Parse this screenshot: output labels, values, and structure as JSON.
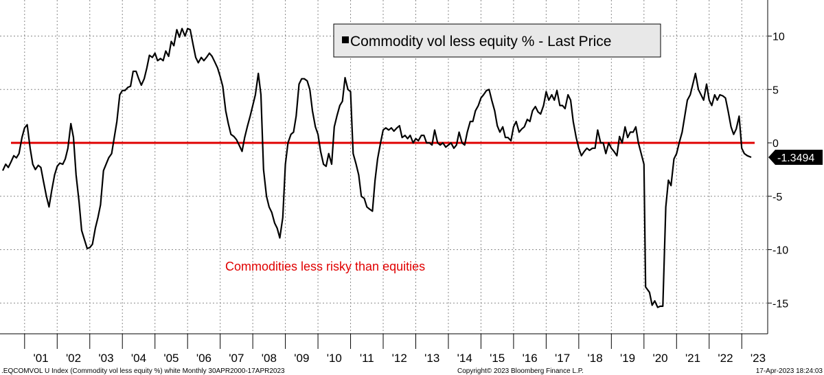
{
  "chart_data": {
    "type": "line",
    "title": "",
    "xlabel": "",
    "ylabel": "",
    "ylim": [
      -18.5,
      12.5
    ],
    "yticks": [
      10,
      5,
      0,
      -5,
      -10,
      -15
    ],
    "ytick_labels": [
      "10",
      "5",
      "0",
      "-5",
      "-10",
      "-15"
    ],
    "x_categories": [
      "'01",
      "'02",
      "'03",
      "'04",
      "'05",
      "'06",
      "'07",
      "'08",
      "'09",
      "'10",
      "'11",
      "'12",
      "'13",
      "'14",
      "'15",
      "'16",
      "'17",
      "'18",
      "'19",
      "'20",
      "'21",
      "'22",
      "'23"
    ],
    "x_start_year": 2000.33,
    "x_end_year": 2023.29,
    "grid": true,
    "legend": {
      "position": "top-center",
      "entries": [
        {
          "name": "Commodity vol less equity % - Last Price",
          "color": "#000000"
        }
      ]
    },
    "reference_line": {
      "y": 0,
      "color": "#e00000"
    },
    "last_value": {
      "value": -1.3494,
      "label": "-1.3494"
    },
    "annotation": {
      "text": "Commodities less risky than equities",
      "color": "#e00000"
    },
    "footer_left": ".EQCOMVOL U Index (Commodity vol less equity %) white  Monthly 30APR2000-17APR2023",
    "footer_center": "Copyright© 2023 Bloomberg Finance L.P.",
    "footer_right": "17-Apr-2023 18:24:03",
    "series": [
      {
        "name": "Commodity vol less equity % - Last Price",
        "color": "#000000",
        "points": [
          [
            2000.33,
            -2.6
          ],
          [
            2000.42,
            -2.0
          ],
          [
            2000.5,
            -2.3
          ],
          [
            2000.58,
            -1.8
          ],
          [
            2000.67,
            -1.2
          ],
          [
            2000.75,
            -1.4
          ],
          [
            2000.83,
            -1.0
          ],
          [
            2000.92,
            0.5
          ],
          [
            2001.0,
            1.4
          ],
          [
            2001.08,
            1.7
          ],
          [
            2001.17,
            -0.5
          ],
          [
            2001.25,
            -2.0
          ],
          [
            2001.33,
            -2.5
          ],
          [
            2001.42,
            -2.1
          ],
          [
            2001.5,
            -2.3
          ],
          [
            2001.58,
            -3.6
          ],
          [
            2001.67,
            -5.0
          ],
          [
            2001.75,
            -6.0
          ],
          [
            2001.83,
            -4.5
          ],
          [
            2001.92,
            -3.0
          ],
          [
            2002.0,
            -2.2
          ],
          [
            2002.08,
            -1.9
          ],
          [
            2002.17,
            -2.0
          ],
          [
            2002.25,
            -1.5
          ],
          [
            2002.33,
            -0.5
          ],
          [
            2002.42,
            1.8
          ],
          [
            2002.5,
            0.5
          ],
          [
            2002.58,
            -3.0
          ],
          [
            2002.67,
            -5.5
          ],
          [
            2002.75,
            -8.2
          ],
          [
            2002.83,
            -9.0
          ],
          [
            2002.92,
            -9.9
          ],
          [
            2003.0,
            -9.8
          ],
          [
            2003.08,
            -9.5
          ],
          [
            2003.17,
            -8.0
          ],
          [
            2003.25,
            -7.0
          ],
          [
            2003.33,
            -5.8
          ],
          [
            2003.42,
            -2.6
          ],
          [
            2003.5,
            -2.0
          ],
          [
            2003.58,
            -1.4
          ],
          [
            2003.67,
            -1.0
          ],
          [
            2003.75,
            0.5
          ],
          [
            2003.83,
            2.0
          ],
          [
            2003.92,
            4.5
          ],
          [
            2004.0,
            4.9
          ],
          [
            2004.08,
            4.9
          ],
          [
            2004.17,
            5.2
          ],
          [
            2004.25,
            5.3
          ],
          [
            2004.33,
            6.7
          ],
          [
            2004.42,
            6.7
          ],
          [
            2004.5,
            6.0
          ],
          [
            2004.58,
            5.4
          ],
          [
            2004.67,
            6.0
          ],
          [
            2004.75,
            7.0
          ],
          [
            2004.83,
            8.2
          ],
          [
            2004.92,
            8.0
          ],
          [
            2005.0,
            8.4
          ],
          [
            2005.08,
            7.7
          ],
          [
            2005.17,
            7.9
          ],
          [
            2005.25,
            7.7
          ],
          [
            2005.33,
            8.6
          ],
          [
            2005.42,
            8.1
          ],
          [
            2005.5,
            9.5
          ],
          [
            2005.58,
            9.1
          ],
          [
            2005.67,
            10.6
          ],
          [
            2005.75,
            9.9
          ],
          [
            2005.83,
            10.7
          ],
          [
            2005.92,
            10.0
          ],
          [
            2006.0,
            10.7
          ],
          [
            2006.08,
            10.6
          ],
          [
            2006.17,
            9.2
          ],
          [
            2006.25,
            8.0
          ],
          [
            2006.33,
            7.5
          ],
          [
            2006.42,
            8.0
          ],
          [
            2006.5,
            7.7
          ],
          [
            2006.58,
            8.0
          ],
          [
            2006.67,
            8.4
          ],
          [
            2006.75,
            8.1
          ],
          [
            2006.83,
            7.6
          ],
          [
            2006.92,
            7.0
          ],
          [
            2007.0,
            6.2
          ],
          [
            2007.08,
            5.3
          ],
          [
            2007.17,
            3.0
          ],
          [
            2007.25,
            1.8
          ],
          [
            2007.33,
            0.8
          ],
          [
            2007.42,
            0.6
          ],
          [
            2007.5,
            0.3
          ],
          [
            2007.58,
            -0.2
          ],
          [
            2007.67,
            -0.8
          ],
          [
            2007.75,
            0.5
          ],
          [
            2007.83,
            1.5
          ],
          [
            2007.92,
            2.5
          ],
          [
            2008.0,
            3.5
          ],
          [
            2008.08,
            4.5
          ],
          [
            2008.17,
            6.5
          ],
          [
            2008.25,
            4.5
          ],
          [
            2008.33,
            -2.5
          ],
          [
            2008.42,
            -5.0
          ],
          [
            2008.5,
            -6.0
          ],
          [
            2008.58,
            -6.5
          ],
          [
            2008.67,
            -7.5
          ],
          [
            2008.75,
            -8.0
          ],
          [
            2008.83,
            -8.9
          ],
          [
            2008.92,
            -7.0
          ],
          [
            2009.0,
            -2.0
          ],
          [
            2009.08,
            0.0
          ],
          [
            2009.17,
            0.8
          ],
          [
            2009.25,
            1.0
          ],
          [
            2009.33,
            2.5
          ],
          [
            2009.42,
            5.5
          ],
          [
            2009.5,
            6.0
          ],
          [
            2009.58,
            6.0
          ],
          [
            2009.67,
            5.8
          ],
          [
            2009.75,
            5.0
          ],
          [
            2009.83,
            3.0
          ],
          [
            2009.92,
            1.5
          ],
          [
            2010.0,
            0.8
          ],
          [
            2010.08,
            -0.8
          ],
          [
            2010.17,
            -2.0
          ],
          [
            2010.25,
            -2.2
          ],
          [
            2010.33,
            -1.0
          ],
          [
            2010.42,
            -2.0
          ],
          [
            2010.5,
            1.5
          ],
          [
            2010.58,
            2.5
          ],
          [
            2010.67,
            3.5
          ],
          [
            2010.75,
            3.9
          ],
          [
            2010.83,
            6.1
          ],
          [
            2010.92,
            5.0
          ],
          [
            2011.0,
            4.8
          ],
          [
            2011.08,
            -1.0
          ],
          [
            2011.17,
            -2.0
          ],
          [
            2011.25,
            -3.0
          ],
          [
            2011.33,
            -5.0
          ],
          [
            2011.42,
            -5.2
          ],
          [
            2011.5,
            -6.0
          ],
          [
            2011.58,
            -6.2
          ],
          [
            2011.67,
            -6.4
          ],
          [
            2011.75,
            -3.5
          ],
          [
            2011.83,
            -1.5
          ],
          [
            2011.92,
            0.0
          ],
          [
            2012.0,
            1.2
          ],
          [
            2012.08,
            1.4
          ],
          [
            2012.17,
            1.2
          ],
          [
            2012.25,
            1.4
          ],
          [
            2012.33,
            1.1
          ],
          [
            2012.42,
            1.4
          ],
          [
            2012.5,
            1.6
          ],
          [
            2012.58,
            0.5
          ],
          [
            2012.67,
            0.7
          ],
          [
            2012.75,
            0.4
          ],
          [
            2012.83,
            0.7
          ],
          [
            2012.92,
            0.0
          ],
          [
            2013.0,
            0.4
          ],
          [
            2013.08,
            0.2
          ],
          [
            2013.17,
            0.7
          ],
          [
            2013.25,
            0.7
          ],
          [
            2013.33,
            0.0
          ],
          [
            2013.42,
            0.0
          ],
          [
            2013.5,
            -0.2
          ],
          [
            2013.58,
            1.2
          ],
          [
            2013.67,
            0.0
          ],
          [
            2013.75,
            -0.2
          ],
          [
            2013.83,
            0.0
          ],
          [
            2013.92,
            -0.4
          ],
          [
            2014.0,
            -0.2
          ],
          [
            2014.08,
            0.0
          ],
          [
            2014.17,
            -0.5
          ],
          [
            2014.25,
            -0.2
          ],
          [
            2014.33,
            1.0
          ],
          [
            2014.42,
            0.0
          ],
          [
            2014.5,
            -0.2
          ],
          [
            2014.58,
            1.0
          ],
          [
            2014.67,
            2.0
          ],
          [
            2014.75,
            2.0
          ],
          [
            2014.83,
            3.0
          ],
          [
            2014.92,
            3.5
          ],
          [
            2015.0,
            4.2
          ],
          [
            2015.08,
            4.5
          ],
          [
            2015.17,
            4.9
          ],
          [
            2015.25,
            5.0
          ],
          [
            2015.33,
            4.0
          ],
          [
            2015.42,
            3.0
          ],
          [
            2015.5,
            1.6
          ],
          [
            2015.58,
            1.0
          ],
          [
            2015.67,
            1.5
          ],
          [
            2015.75,
            0.5
          ],
          [
            2015.83,
            0.5
          ],
          [
            2015.92,
            0.2
          ],
          [
            2016.0,
            1.5
          ],
          [
            2016.08,
            2.0
          ],
          [
            2016.17,
            1.0
          ],
          [
            2016.25,
            1.3
          ],
          [
            2016.33,
            1.5
          ],
          [
            2016.42,
            2.2
          ],
          [
            2016.5,
            2.0
          ],
          [
            2016.58,
            3.0
          ],
          [
            2016.67,
            3.4
          ],
          [
            2016.75,
            2.9
          ],
          [
            2016.83,
            2.7
          ],
          [
            2016.92,
            3.5
          ],
          [
            2017.0,
            4.8
          ],
          [
            2017.08,
            4.0
          ],
          [
            2017.17,
            4.5
          ],
          [
            2017.25,
            4.0
          ],
          [
            2017.33,
            4.9
          ],
          [
            2017.42,
            3.5
          ],
          [
            2017.5,
            3.5
          ],
          [
            2017.58,
            3.2
          ],
          [
            2017.67,
            4.5
          ],
          [
            2017.75,
            4.0
          ],
          [
            2017.83,
            2.0
          ],
          [
            2017.92,
            0.5
          ],
          [
            2018.0,
            -0.5
          ],
          [
            2018.08,
            -1.2
          ],
          [
            2018.17,
            -0.8
          ],
          [
            2018.25,
            -0.5
          ],
          [
            2018.33,
            -0.7
          ],
          [
            2018.42,
            -0.5
          ],
          [
            2018.5,
            -0.5
          ],
          [
            2018.58,
            1.2
          ],
          [
            2018.67,
            0.0
          ],
          [
            2018.75,
            0.0
          ],
          [
            2018.83,
            -1.0
          ],
          [
            2018.92,
            0.0
          ],
          [
            2019.0,
            -0.5
          ],
          [
            2019.08,
            -0.8
          ],
          [
            2019.17,
            -1.2
          ],
          [
            2019.25,
            0.6
          ],
          [
            2019.33,
            0.0
          ],
          [
            2019.42,
            1.5
          ],
          [
            2019.5,
            0.5
          ],
          [
            2019.58,
            1.0
          ],
          [
            2019.67,
            1.0
          ],
          [
            2019.75,
            1.5
          ],
          [
            2019.83,
            0.0
          ],
          [
            2020.0,
            -2.0
          ],
          [
            2020.05,
            -13.5
          ],
          [
            2020.17,
            -14.0
          ],
          [
            2020.25,
            -15.2
          ],
          [
            2020.33,
            -14.8
          ],
          [
            2020.42,
            -15.4
          ],
          [
            2020.5,
            -15.3
          ],
          [
            2020.58,
            -15.3
          ],
          [
            2020.67,
            -6.0
          ],
          [
            2020.75,
            -3.5
          ],
          [
            2020.83,
            -4.0
          ],
          [
            2020.92,
            -1.5
          ],
          [
            2021.0,
            -1.0
          ],
          [
            2021.08,
            0.0
          ],
          [
            2021.17,
            1.0
          ],
          [
            2021.25,
            2.5
          ],
          [
            2021.33,
            4.0
          ],
          [
            2021.42,
            4.5
          ],
          [
            2021.5,
            5.5
          ],
          [
            2021.58,
            6.5
          ],
          [
            2021.67,
            5.0
          ],
          [
            2021.75,
            4.5
          ],
          [
            2021.83,
            4.0
          ],
          [
            2021.92,
            5.5
          ],
          [
            2022.0,
            4.0
          ],
          [
            2022.08,
            3.5
          ],
          [
            2022.17,
            4.5
          ],
          [
            2022.25,
            4.0
          ],
          [
            2022.33,
            4.5
          ],
          [
            2022.42,
            4.4
          ],
          [
            2022.5,
            4.2
          ],
          [
            2022.58,
            3.0
          ],
          [
            2022.67,
            1.5
          ],
          [
            2022.75,
            0.8
          ],
          [
            2022.83,
            1.3
          ],
          [
            2022.92,
            2.5
          ],
          [
            2023.0,
            -0.5
          ],
          [
            2023.08,
            -1.0
          ],
          [
            2023.17,
            -1.2
          ],
          [
            2023.29,
            -1.35
          ]
        ]
      }
    ]
  }
}
